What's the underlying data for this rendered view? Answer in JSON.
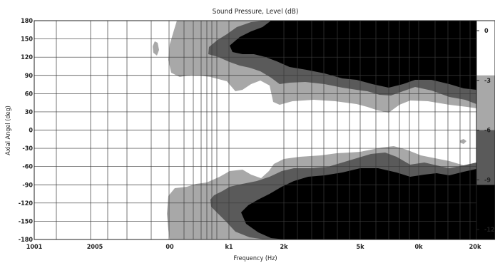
{
  "chart_data": {
    "type": "heatmap",
    "title": "Sound Pressure, Level  (dB)",
    "xlabel": "Frequency  (Hz)",
    "ylabel": "Axial Angel  (deg)",
    "x_ticks": [
      "1001",
      "2005",
      "00",
      "k1",
      "2k",
      "5k",
      "0k",
      "20k"
    ],
    "y_ticks": [
      "180",
      "150",
      "120",
      "90",
      "60",
      "30",
      "0",
      "-30",
      "-60",
      "-90",
      "-120",
      "-150",
      "-180"
    ],
    "ylim": [
      -180,
      180
    ],
    "x_scale": "log",
    "grid": true,
    "colorbar": {
      "ticks": [
        "0",
        "-3",
        "-6",
        "-9",
        "-12"
      ],
      "levels": [
        {
          "range": "0 to -3",
          "color": "#ffffff"
        },
        {
          "range": "-3 to -6",
          "color": "#a8a8a8"
        },
        {
          "range": "-6 to -9",
          "color": "#5a5a5a"
        },
        {
          "range": "-9 to -12",
          "color": "#000000"
        }
      ]
    }
  }
}
